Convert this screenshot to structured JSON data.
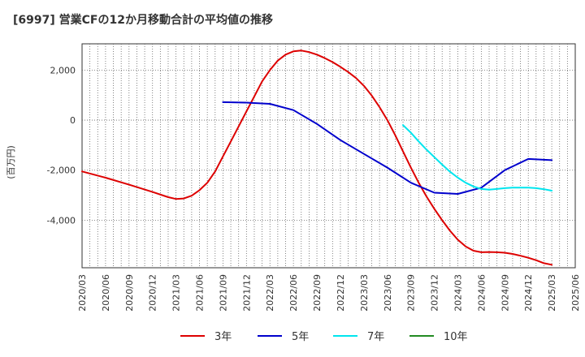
{
  "chart_data": {
    "type": "line",
    "title": "[6997]  営業CFの12か月移動合計の平均値の推移",
    "ylabel": "(百万円)",
    "xlabel": "",
    "ylim": [
      -5900,
      3050
    ],
    "yticks": [
      2000,
      0,
      -2000,
      -4000
    ],
    "ytick_labels": [
      "2,000",
      "0",
      "-2,000",
      "-4,000"
    ],
    "x_start": "2020/03",
    "x_end": "2025/06",
    "x_ticks": [
      "2020/03",
      "2020/06",
      "2020/09",
      "2020/12",
      "2021/03",
      "2021/06",
      "2021/09",
      "2021/12",
      "2022/03",
      "2022/06",
      "2022/09",
      "2022/12",
      "2023/03",
      "2023/06",
      "2023/09",
      "2023/12",
      "2024/03",
      "2024/06",
      "2024/09",
      "2024/12",
      "2025/03",
      "2025/06"
    ],
    "grid": true,
    "legend_position": "bottom",
    "series": [
      {
        "name": "3年",
        "color": "#dd0000",
        "x": [
          "2020/03",
          "2020/06",
          "2020/09",
          "2020/12",
          "2021/02",
          "2021/03",
          "2021/04",
          "2021/05",
          "2021/06",
          "2021/07",
          "2021/08",
          "2021/09",
          "2021/10",
          "2021/11",
          "2021/12",
          "2022/01",
          "2022/02",
          "2022/03",
          "2022/04",
          "2022/05",
          "2022/06",
          "2022/07",
          "2022/08",
          "2022/09",
          "2022/10",
          "2022/11",
          "2022/12",
          "2023/01",
          "2023/02",
          "2023/03",
          "2023/04",
          "2023/05",
          "2023/06",
          "2023/07",
          "2023/08",
          "2023/09",
          "2023/10",
          "2023/11",
          "2023/12",
          "2024/01",
          "2024/02",
          "2024/03",
          "2024/04",
          "2024/05",
          "2024/06",
          "2024/07",
          "2024/08",
          "2024/09",
          "2024/10",
          "2024/11",
          "2024/12",
          "2025/01",
          "2025/02",
          "2025/03"
        ],
        "values": [
          -2050,
          -2300,
          -2580,
          -2870,
          -3080,
          -3150,
          -3130,
          -3020,
          -2800,
          -2500,
          -2050,
          -1450,
          -850,
          -250,
          350,
          950,
          1550,
          2000,
          2380,
          2620,
          2750,
          2780,
          2720,
          2620,
          2480,
          2320,
          2130,
          1920,
          1680,
          1370,
          980,
          520,
          0,
          -600,
          -1250,
          -1900,
          -2500,
          -3050,
          -3550,
          -4000,
          -4420,
          -4780,
          -5050,
          -5220,
          -5280,
          -5270,
          -5280,
          -5300,
          -5350,
          -5420,
          -5500,
          -5600,
          -5720,
          -5780
        ]
      },
      {
        "name": "5年",
        "color": "#0000cc",
        "x": [
          "2021/09",
          "2021/12",
          "2022/03",
          "2022/06",
          "2022/09",
          "2022/12",
          "2023/03",
          "2023/06",
          "2023/09",
          "2023/12",
          "2024/03",
          "2024/06",
          "2024/09",
          "2024/12",
          "2025/03"
        ],
        "values": [
          720,
          700,
          650,
          400,
          -150,
          -800,
          -1350,
          -1900,
          -2500,
          -2900,
          -2950,
          -2700,
          -2000,
          -1550,
          -1600
        ]
      },
      {
        "name": "7年",
        "color": "#00e5ee",
        "x": [
          "2023/08",
          "2023/09",
          "2023/10",
          "2023/11",
          "2023/12",
          "2024/01",
          "2024/02",
          "2024/03",
          "2024/04",
          "2024/05",
          "2024/06",
          "2024/07",
          "2024/08",
          "2024/09",
          "2024/10",
          "2024/11",
          "2024/12",
          "2025/01",
          "2025/02",
          "2025/03"
        ],
        "values": [
          -200,
          -500,
          -850,
          -1180,
          -1480,
          -1780,
          -2060,
          -2300,
          -2500,
          -2650,
          -2750,
          -2780,
          -2750,
          -2720,
          -2700,
          -2700,
          -2700,
          -2720,
          -2760,
          -2820
        ]
      },
      {
        "name": "10年",
        "color": "#228b22",
        "x": [],
        "values": []
      }
    ]
  }
}
